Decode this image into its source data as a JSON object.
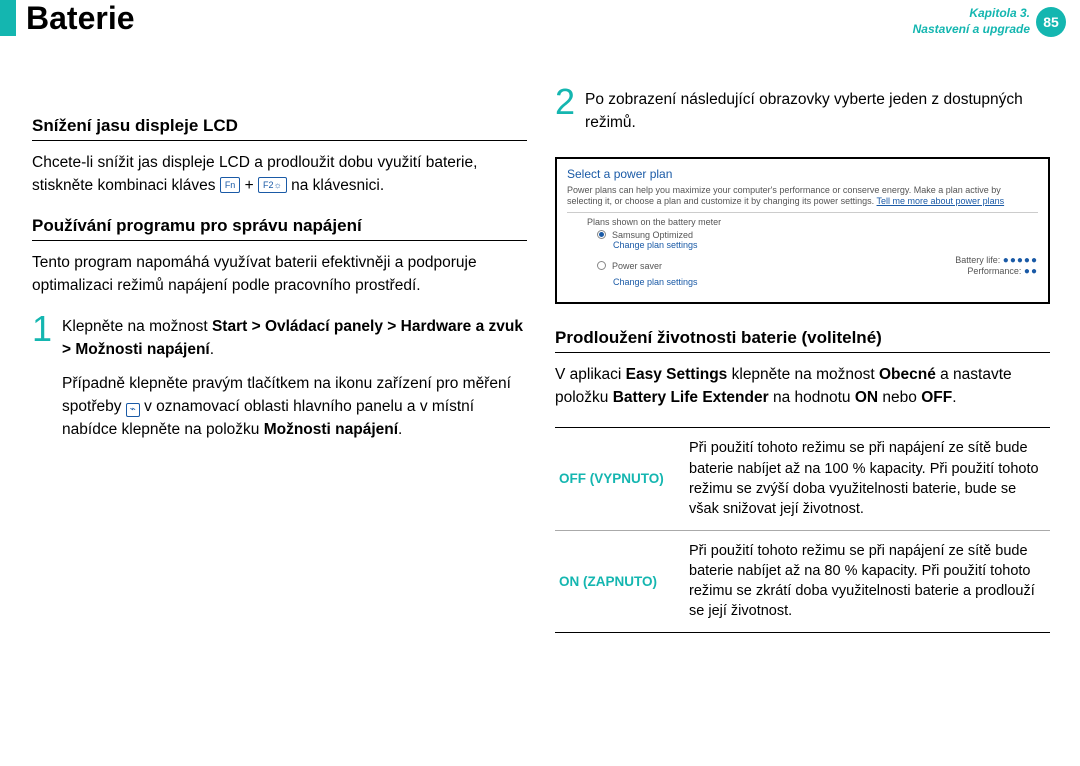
{
  "header": {
    "title": "Baterie",
    "chapter_line1": "Kapitola 3.",
    "chapter_line2": "Nastavení a upgrade",
    "page_number": "85",
    "accent_color": "#14b6b0"
  },
  "left": {
    "sec1_title": "Snížení jasu displeje LCD",
    "sec1_p1a": "Chcete-li snížit jas displeje LCD a prodloužit dobu využití baterie,",
    "sec1_p1b_before": "stiskněte kombinaci kláves ",
    "sec1_key1": "Fn",
    "sec1_plus": " + ",
    "sec1_key2": "F2☼",
    "sec1_p1b_after": " na klávesnici.",
    "sec2_title": "Používání programu pro správu napájení",
    "sec2_p1": "Tento program napomáhá využívat baterii efektivněji a podporuje optimalizaci režimů napájení podle pracovního prostředí.",
    "step1_num": "1",
    "step1_a": "Klepněte na možnost ",
    "step1_bold": "Start > Ovládací panely > Hardware a zvuk > Možnosti napájení",
    "step1_a2": ".",
    "step1_b_before": "Případně klepněte pravým tlačítkem na ikonu zařízení pro měření spotřeby ",
    "step1_b_after": " v oznamovací oblasti hlavního panelu a v místní nabídce klepněte na položku ",
    "step1_b_bold": "Možnosti napájení",
    "step1_b_end": "."
  },
  "right": {
    "step2_num": "2",
    "step2_text": "Po zobrazení následující obrazovky vyberte jeden z dostupných režimů.",
    "ss_title": "Select a power plan",
    "ss_desc_a": "Power plans can help you maximize your computer's performance or conserve energy. Make a plan active by selecting it, or choose a plan and customize it by changing its power settings. ",
    "ss_link1": "Tell me more about power plans",
    "ss_shown": "Plans shown on the battery meter",
    "ss_plan1": "Samsung Optimized",
    "ss_change": "Change plan settings",
    "ss_plan2": "Power saver",
    "ss_batt_label": "Battery life:",
    "ss_perf_label": "Performance:",
    "sec3_title": "Prodloužení životnosti baterie (volitelné)",
    "sec3_p1_a": "V aplikaci ",
    "sec3_p1_b1": "Easy Settings",
    "sec3_p1_c": " klepněte na možnost ",
    "sec3_p1_b2": "Obecné",
    "sec3_p1_d": " a nastavte položku ",
    "sec3_p1_b3": "Battery Life Extender",
    "sec3_p1_e": " na hodnotu ",
    "sec3_p1_b4": "ON",
    "sec3_p1_f": " nebo ",
    "sec3_p1_b5": "OFF",
    "sec3_p1_g": ".",
    "tbl_off_label": "OFF (VYPNUTO)",
    "tbl_off_desc": "Při použití tohoto režimu se při napájení ze sítě bude baterie nabíjet až na 100 % kapacity. Při použití tohoto režimu se zvýší doba využitelnosti baterie, bude se však snižovat její životnost.",
    "tbl_on_label": "ON (ZAPNUTO)",
    "tbl_on_desc": "Při použití tohoto režimu se při napájení ze sítě bude baterie nabíjet až na 80 % kapacity. Při použití tohoto režimu se zkrátí doba využitelnosti baterie a prodlouží se její životnost."
  }
}
